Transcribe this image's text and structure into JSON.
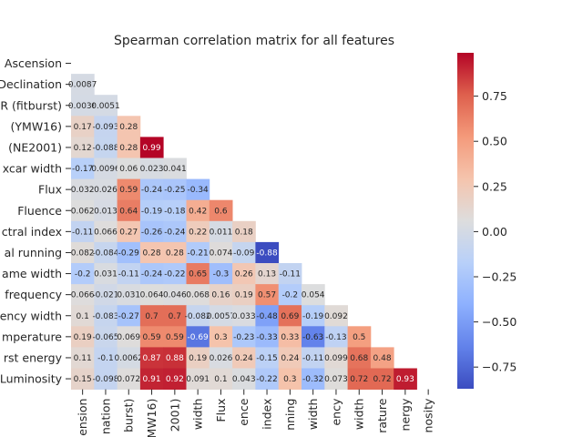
{
  "chart_data": {
    "type": "heatmap",
    "title": "Spearman correlation matrix for all features",
    "mask": "upper-triangle-including-diagonal",
    "cmap": "coolwarm",
    "vmin": -0.87,
    "vmax": 0.99,
    "row_labels": [
      "Ascension",
      "Declination",
      "R (fitburst)",
      "(YMW16)",
      "(NE2001)",
      "xcar width",
      "Flux",
      "Fluence",
      "ctral index",
      "al running",
      "ame width",
      "frequency",
      "ency width",
      "mperature",
      "rst energy",
      "Luminosity"
    ],
    "col_labels": [
      "ension",
      "nation",
      "burst)",
      "MW16)",
      "2001)",
      "width",
      "Flux",
      "ence",
      "index",
      "nning",
      "width",
      "ency",
      "width",
      "rature",
      "nergy",
      "nosity"
    ],
    "cells_display": [
      [],
      [
        "0.0087"
      ],
      [
        "0.0036",
        "0.0051"
      ],
      [
        "0.17",
        "-0.093",
        "0.28"
      ],
      [
        "0.12",
        "-0.088",
        "0.28",
        "0.99"
      ],
      [
        "-0.17",
        "0.0096",
        "0.06",
        "0.023",
        "0.041"
      ],
      [
        "0.032",
        "0.026",
        "0.59",
        "-0.24",
        "-0.25",
        "-0.34"
      ],
      [
        "0.062",
        "0.013",
        "0.64",
        "-0.19",
        "-0.18",
        "0.42",
        "0.6"
      ],
      [
        "-0.11",
        "0.066",
        "0.27",
        "-0.26",
        "-0.24",
        "0.22",
        "0.011",
        "0.18"
      ],
      [
        "0.082",
        "-0.084",
        "-0.29",
        "0.28",
        "0.28",
        "-0.21",
        "0.074",
        "-0.09",
        "-0.88"
      ],
      [
        "-0.2",
        "0.031",
        "-0.11",
        "-0.24",
        "-0.22",
        "0.65",
        "-0.3",
        "0.26",
        "0.13",
        "-0.11"
      ],
      [
        "0.066",
        "-0.021",
        "0.031",
        "0.064",
        "0.046",
        "0.068",
        "0.16",
        "0.19",
        "0.57",
        "-0.2",
        "0.054"
      ],
      [
        "0.1",
        "-0.083",
        "-0.27",
        "0.7",
        "0.7",
        "-0.082",
        "0.0057",
        "0.033",
        "-0.48",
        "0.69",
        "-0.19",
        "0.092"
      ],
      [
        "0.19",
        "-0.065",
        "0.069",
        "0.59",
        "0.59",
        "-0.69",
        "0.3",
        "-0.23",
        "-0.33",
        "0.33",
        "-0.63",
        "-0.13",
        "0.5"
      ],
      [
        "0.11",
        "-0.1",
        "0.0062",
        "0.87",
        "0.88",
        "0.19",
        "0.026",
        "0.24",
        "-0.15",
        "0.24",
        "-0.11",
        "0.099",
        "0.68",
        "0.48"
      ],
      [
        "0.15",
        "-0.098",
        "0.072",
        "0.91",
        "0.92",
        "0.091",
        "0.1",
        "0.043",
        "-0.22",
        "0.3",
        "-0.32",
        "0.073",
        "0.72",
        "0.72",
        "0.93"
      ]
    ],
    "colorbar": {
      "ticks": [
        0.75,
        0.5,
        0.25,
        0.0,
        -0.25,
        -0.5,
        -0.75
      ],
      "tick_labels": [
        "0.75",
        "0.50",
        "0.25",
        "0.00",
        "−0.25",
        "−0.50",
        "−0.75"
      ]
    }
  }
}
